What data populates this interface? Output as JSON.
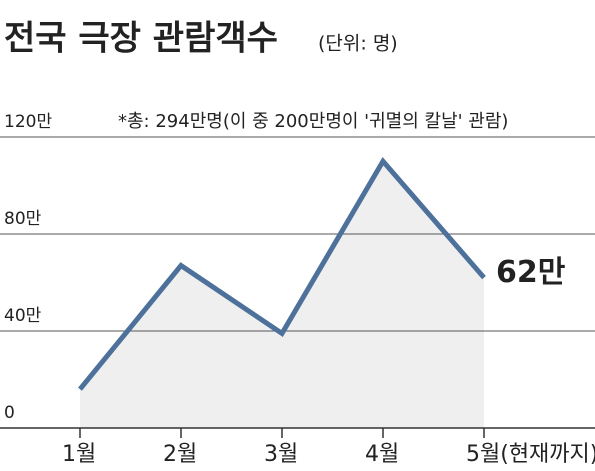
{
  "chart_data": {
    "type": "line",
    "title": "전국 극장 관람객수",
    "subtitle": "(단위: 명)",
    "annotation": "*총: 294만명(이 중 200만명이 '귀멸의 칼날' 관람)",
    "categories": [
      "1월",
      "2월",
      "3월",
      "4월",
      "5월(현재까지)"
    ],
    "values": [
      16,
      67,
      39,
      110,
      62
    ],
    "value_labels": [
      null,
      null,
      null,
      null,
      "62만"
    ],
    "color": "#4d719b",
    "area_color": "#efefef",
    "ylim": [
      0,
      130
    ],
    "yticks": [
      0,
      {
        "value": 40,
        "label": "40만"
      },
      {
        "value": 80,
        "label": "80만"
      },
      {
        "value": 120,
        "label": "120만"
      }
    ],
    "grid": true
  }
}
